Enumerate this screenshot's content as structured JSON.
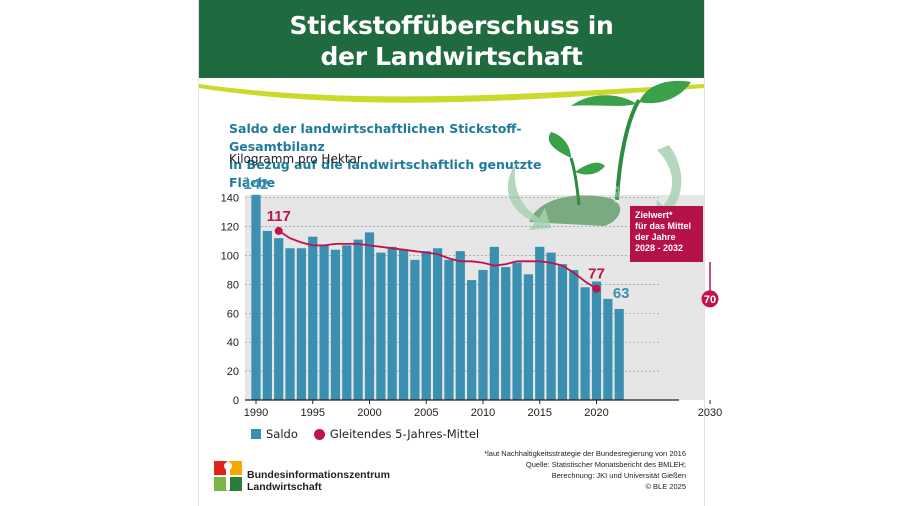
{
  "header": {
    "title_line1": "Stickstoffüberschuss in",
    "title_line2": "der Landwirtschaft"
  },
  "subtitle_line1": "Saldo der landwirtschaftlichen Stickstoff-Gesamtbilanz",
  "subtitle_line2": "in Bezug auf die landwirtschaftlich genutzte Fläche",
  "unit": "Kilogramm pro Hektar",
  "target": {
    "lines": [
      "Zielwert*",
      "für das Mittel",
      "der Jahre",
      "2028 - 2032"
    ],
    "value": "70"
  },
  "annotations": {
    "first_bar": "142",
    "first_average": "117",
    "last_average": "77",
    "last_bar": "63"
  },
  "legend": {
    "bar_label": "Saldo",
    "line_label": "Gleitendes 5-Jahres-Mittel"
  },
  "footnote": [
    "*laut Nachhaltigkeitsstrategie der Bundesregierung von 2016",
    "Quelle: Statistischer Monatsbericht des BMLEH;",
    "Berechnung: JKI und Universität Gießen",
    "© BLE 2025"
  ],
  "logo": {
    "line1": "Bundesinformationszentrum",
    "line2": "Landwirtschaft"
  },
  "watermark": "© BLE",
  "colors": {
    "header_green": "#1f6b3f",
    "bar_blue": "#3b8fb0",
    "line_red": "#c0124d",
    "subtitle_blue": "#1f7a9c",
    "plot_bg": "#e6e6e6"
  },
  "chart_data": {
    "type": "bar",
    "x": [
      1990,
      1991,
      1992,
      1993,
      1994,
      1995,
      1996,
      1997,
      1998,
      1999,
      2000,
      2001,
      2002,
      2003,
      2004,
      2005,
      2006,
      2007,
      2008,
      2009,
      2010,
      2011,
      2012,
      2013,
      2014,
      2015,
      2016,
      2017,
      2018,
      2019,
      2020,
      2021,
      2022
    ],
    "series": [
      {
        "name": "Saldo",
        "type": "bar",
        "values": [
          142,
          117,
          112,
          105,
          105,
          113,
          107,
          104,
          107,
          111,
          116,
          102,
          106,
          104,
          97,
          103,
          105,
          97,
          103,
          83,
          90,
          106,
          92,
          95,
          87,
          106,
          102,
          94,
          90,
          78,
          82,
          70,
          63
        ]
      },
      {
        "name": "Gleitendes 5-Jahres-Mittel",
        "type": "line",
        "x": [
          1992,
          1993,
          1994,
          1995,
          1996,
          1997,
          1998,
          1999,
          2000,
          2001,
          2002,
          2003,
          2004,
          2005,
          2006,
          2007,
          2008,
          2009,
          2010,
          2011,
          2012,
          2013,
          2014,
          2015,
          2016,
          2017,
          2018,
          2019,
          2020
        ],
        "values": [
          117,
          112,
          109,
          107,
          107,
          108,
          108,
          108,
          107,
          106,
          105,
          104,
          103,
          102,
          101,
          98,
          96,
          96,
          95,
          93,
          94,
          96,
          96,
          96,
          95,
          93,
          88,
          82,
          77
        ]
      }
    ],
    "target_point": {
      "x": 2030,
      "value": 70
    },
    "xticks": [
      1990,
      1995,
      2000,
      2005,
      2010,
      2015,
      2020,
      2030
    ],
    "yticks": [
      0,
      20,
      40,
      60,
      80,
      100,
      120,
      140
    ],
    "xlim": [
      1989.5,
      2032
    ],
    "ylim": [
      0,
      145
    ],
    "grid": true
  }
}
